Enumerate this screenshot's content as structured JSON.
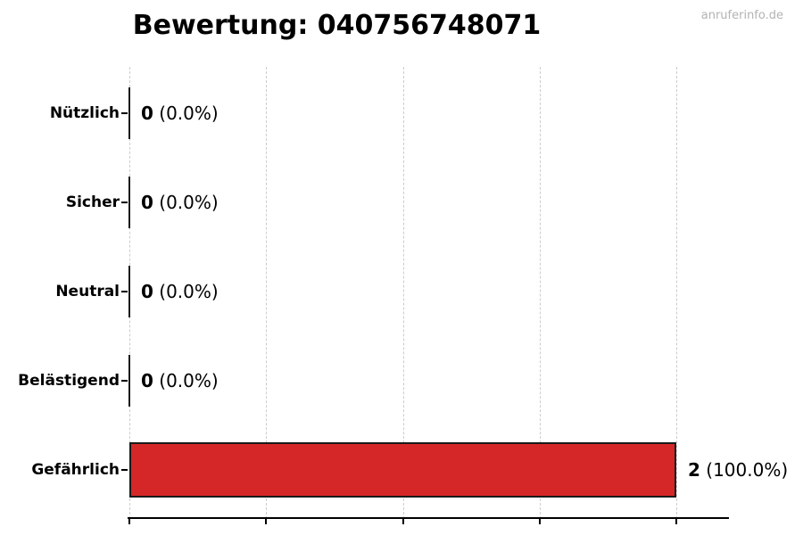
{
  "page": {
    "watermark": "anruferinfo.de"
  },
  "colors": {
    "bar_fill": "#d62728",
    "bar_border": "#1a1a1a",
    "grid": "#cccccc",
    "axis": "#000000",
    "title": "#000000",
    "watermark": "#b3b3b3"
  },
  "chart_data": {
    "type": "bar",
    "orientation": "horizontal",
    "title": "Bewertung: 040756748071",
    "categories": [
      "Nützlich",
      "Sicher",
      "Neutral",
      "Belästigend",
      "Gefährlich"
    ],
    "values": [
      0,
      0,
      0,
      0,
      2
    ],
    "value_labels": [
      {
        "count": "0",
        "pct": "(0.0%)"
      },
      {
        "count": "0",
        "pct": "(0.0%)"
      },
      {
        "count": "0",
        "pct": "(0.0%)"
      },
      {
        "count": "0",
        "pct": "(0.0%)"
      },
      {
        "count": "2",
        "pct": "(100.0%)"
      }
    ],
    "xlabel": "",
    "ylabel": "",
    "xlim": [
      0,
      2
    ],
    "x_ticks": [
      0,
      0.5,
      1,
      1.5,
      2
    ],
    "x_tick_labels_visible": false,
    "grid": "vertical-dashed",
    "legend": "none",
    "bar_color": "#d62728"
  }
}
